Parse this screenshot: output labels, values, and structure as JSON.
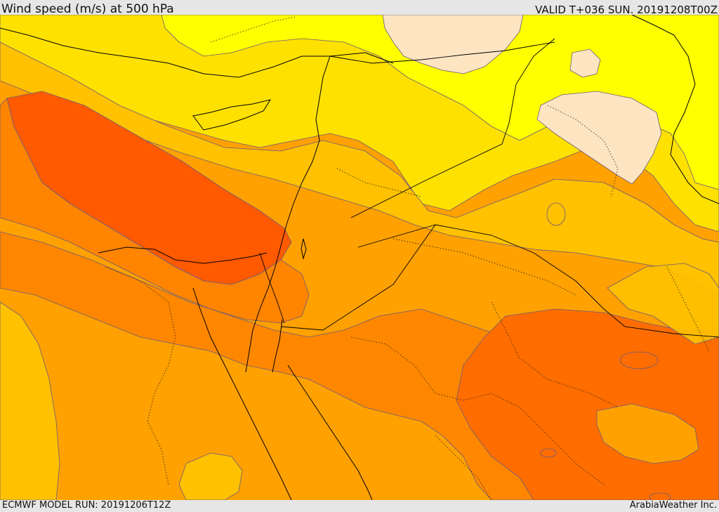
{
  "header": {
    "title": "Wind speed (m/s) at 500 hPa",
    "valid_time": "VALID T+036 SUN. 20191208T00Z"
  },
  "footer": {
    "model_run": "ECMWF MODEL RUN: 20191206T12Z",
    "credit": "ArabiaWeather Inc."
  },
  "colors": {
    "lightest": "#fde5c2",
    "yellow": "#ffff00",
    "gold": "#ffe100",
    "amber": "#ffc100",
    "orange_light": "#ffa100",
    "orange": "#ff8700",
    "orange_dark": "#ff6d00",
    "red_orange": "#ff5a00"
  }
}
